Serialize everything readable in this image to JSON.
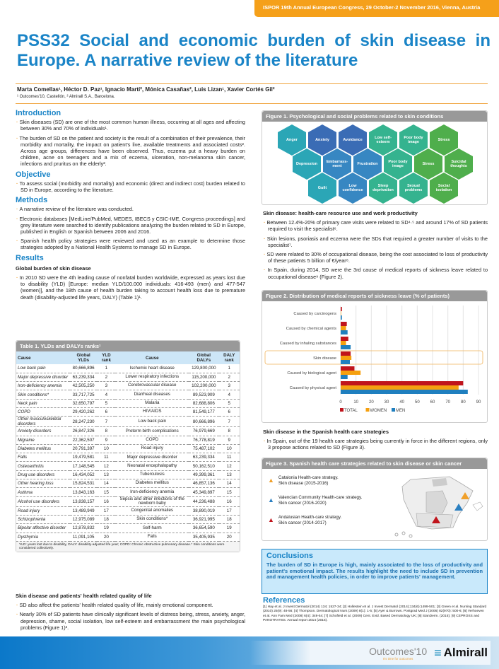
{
  "header": {
    "congress": "ISPOR 19th Annual European Congress, 29 October-2 November 2016, Vienna, Austria",
    "title": "PSS32 Social and economic burden of skin disease in Europe. A narrative review of the literature",
    "authors": "Marta Comellas¹, Héctor D. Paz¹, Ignacio Martí², Mónica Casañas², Luis Lizan¹, Xavier Cortés Gil²",
    "affiliations": "¹ Outcomes'10, Castellón, ² Almirall S.A., Barcelona."
  },
  "introduction": {
    "heading": "Introduction",
    "bullets": [
      "Skin diseases (SD) are one of the most common human illness, occurring at all ages and affecting between 30% and 70% of individuals¹.",
      "The burden of SD on the patient and society is the result of a combination of their prevalence, their morbidity and mortality, the impact on patient's live, available treatments and associated costs². Across age groups, differences have been observed. Thus, eczema put a heavy burden on children, acne on teenagers and a mix of eczema, ulceration, non-melanoma skin cancer, infections and pruritus on the elderly²."
    ]
  },
  "objective": {
    "heading": "Objective",
    "bullets": [
      "To assess social (morbidity and mortality) and economic (direct and indirect cost) burden related to SD in Europe, according to the literature."
    ]
  },
  "methods": {
    "heading": "Methods",
    "bullets": [
      "A narrative review of the literature was conducted.",
      "Electronic databases [MedLine/PubMed, MEDES, IBECS y CSIC-IME, Congress proceedings] and grey literature were searched to identify publications analyzing the burden related to SD in Europe, published in English or Spanish between 2006 and 2016.",
      "Spanish health policy strategies were reviewed and used as an example to determine those strategies adopted by a National Health Systems to manage SD in Europe."
    ]
  },
  "results": {
    "heading": "Results",
    "sub1": "Global burden of skin disease",
    "bullets1": [
      "In 2010 SD were the 4th leading cause of nonfatal burden worldwide, expressed as years lost due to disability (YLD) [Europe: median YLD/100.000 individuals: 416-493 (men) and 477-547 (women)], and the 18th cause of health burden taking to account health loss due to premature death (disability-adjusted life years, DALY) (Table 1)¹."
    ],
    "sub2": "Skin disease and patients' health related quality of life",
    "bullets2": [
      "SD also affect the patients' health related quality of life, mainly emotional component.",
      "Nearly 30% of SD patients have clinically significant levels of distress being, stress, anxiety, anger, depression, shame, social isolation, low self-esteem and embarrassment the main psychological problems (Figure 1)³."
    ],
    "sub3": "Skin disease: health-care resource use and work productivity",
    "bullets3": [
      "Between 12.4%-20% of primary care visits were related to SD⁴·⁵ and around 17% of SD patients required to visit the specialist⁶.",
      "Skin lesions, psoriasis and eczema were the SDs that required a greater number of visits to the specialist⁷.",
      "SD were related to 30% of occupational disease, being the cost associated to loss of productivity of these patients 5 billion of €/year⁸.",
      "In Spain, during 2014, SD were the 3rd cause of medical reports of sickness leave related to occupational disease⁹ (Figure 2)."
    ],
    "sub4": "Skin disease in the Spanish health care strategies",
    "bullets4": [
      "In Spain, out of the 19 health care strategies being currently in force in the different regions, only 3 propose actions related to SD (Figure 3)."
    ]
  },
  "table1": {
    "title": "Table 1. YLDs and DALYs ranks¹",
    "headers": [
      "Cause",
      "Global YLDs",
      "YLD rank",
      "Cause",
      "Global DALYs",
      "DALY rank"
    ],
    "rows": [
      [
        "Low back pain",
        "80,666,896",
        "1",
        "Ischemic heart disease",
        "129,800,000",
        "1"
      ],
      [
        "Major depressive disorder",
        "63,239,334",
        "2",
        "Lower respiratory infections",
        "115,200,000",
        "2"
      ],
      [
        "Iron-deficiency anemia",
        "42,505,250",
        "3",
        "Cerebrovascular disease",
        "102,200,000",
        "3"
      ],
      [
        "Skin conditions*",
        "33,717,725",
        "4",
        "Diarrheal diseases",
        "89,523,909",
        "4"
      ],
      [
        "Neck pain",
        "32,650,797",
        "5",
        "Malaria",
        "82,688,806",
        "5"
      ],
      [
        "COPD",
        "29,420,262",
        "6",
        "HIV/AIDS",
        "81,549,177",
        "6"
      ],
      [
        "Other musculoskeletal disorders",
        "28,247,230",
        "7",
        "Low back pain",
        "80,666,896",
        "7"
      ],
      [
        "Anxiety disorders",
        "26,847,326",
        "8",
        "Preterm birth complications",
        "76,979,669",
        "8"
      ],
      [
        "Migraine",
        "22,362,507",
        "9",
        "COPD",
        "76,778,819",
        "9"
      ],
      [
        "Diabetes mellitus",
        "20,791,397",
        "10",
        "Road injury",
        "75,487,102",
        "10"
      ],
      [
        "Falls",
        "19,479,581",
        "11",
        "Major depressive disorder",
        "63,239,334",
        "11"
      ],
      [
        "Osteoarthritis",
        "17,148,545",
        "12",
        "Neonatal encephalopathy",
        "50,162,510",
        "12"
      ],
      [
        "Drug use disorders",
        "16,434,052",
        "13",
        "Tuberculosis",
        "49,399,361",
        "13"
      ],
      [
        "Other hearing loss",
        "15,824,531",
        "14",
        "Diabetes mellitus",
        "46,857,136",
        "14"
      ],
      [
        "Asthma",
        "13,843,163",
        "15",
        "Iron-deficiency anemia",
        "45,349,897",
        "15"
      ],
      [
        "Alcohol use disorders",
        "13,838,157",
        "16",
        "Sepsis and other infections of the newborn baby",
        "44,236,488",
        "16"
      ],
      [
        "Road injury",
        "13,489,949",
        "17",
        "Congenital anomalies",
        "38,890,019",
        "17"
      ],
      [
        "Schizophrenia",
        "12,975,089",
        "18",
        "Skin conditions*",
        "36,921,995",
        "18"
      ],
      [
        "Bipolar affective disorder",
        "12,878,832",
        "19",
        "Self-harm",
        "36,654,590",
        "19"
      ],
      [
        "Dysthymia",
        "11,091,105",
        "20",
        "Falls",
        "35,405,935",
        "20"
      ]
    ],
    "footnote": "YLD: years lost due to disability, DALY: disability-adjusted life year; COPD: Chronic obstructive pulmonary disease.* Skin conditions were considered collectively."
  },
  "figure1": {
    "title": "Figure 1. Psychological and social problems related to skin conditions",
    "hexes": [
      {
        "label": "Anger",
        "color": "#2ba6b6"
      },
      {
        "label": "Anxiety",
        "color": "#3a6cb5"
      },
      {
        "label": "Avoidance",
        "color": "#3a6cb5"
      },
      {
        "label": "Low self-esteem",
        "color": "#35b38f"
      },
      {
        "label": "Poor body image",
        "color": "#35b38f"
      },
      {
        "label": "Stress",
        "color": "#4fae4c"
      },
      {
        "label": "Depression",
        "color": "#2ba6b6"
      },
      {
        "label": "Embarrass-ment",
        "color": "#3787c2"
      },
      {
        "label": "Frustration",
        "color": "#3787c2"
      },
      {
        "label": "Poor body image",
        "color": "#35b38f"
      },
      {
        "label": "Stress",
        "color": "#4fae4c"
      },
      {
        "label": "Suicidal thoughts",
        "color": "#4fae4c"
      },
      {
        "label": "Guilt",
        "color": "#2ba6b6"
      },
      {
        "label": "Low confidence",
        "color": "#3787c2"
      },
      {
        "label": "Sleep deprivation",
        "color": "#35b38f"
      },
      {
        "label": "Sexual problems",
        "color": "#35b38f"
      },
      {
        "label": "Social isolation",
        "color": "#4fae4c"
      }
    ]
  },
  "chart_data": {
    "type": "bar",
    "orientation": "horizontal",
    "title": "Figure 2. Distribution of medical reports of sickness leave (% of patients)",
    "categories": [
      "Caused by carcinogens",
      "Caused by chemical agents",
      "Caused by inhaling substances",
      "Skin disease",
      "Caused by biological agent",
      "Caused by physical agent"
    ],
    "highlight": "Skin disease",
    "xlim": [
      0,
      90
    ],
    "xticks": [
      "0",
      "10",
      "20",
      "30",
      "40",
      "50",
      "60",
      "70",
      "80",
      "90"
    ],
    "legend": "bottom",
    "grid": true,
    "series": [
      {
        "name": "TOTAL",
        "color": "#c0141c",
        "values": [
          0.8,
          4,
          5,
          6.5,
          9,
          80
        ]
      },
      {
        "name": "WOMEN",
        "color": "#f5a00f",
        "values": [
          0.3,
          3.5,
          3.5,
          7,
          13,
          77
        ]
      },
      {
        "name": "MEN",
        "color": "#1f7fbf",
        "values": [
          0.8,
          4.5,
          6.5,
          6,
          4.5,
          83
        ]
      }
    ]
  },
  "figure3": {
    "title": "Figure 3. Spanish health care strategies related to skin disease or skin cancer",
    "items": [
      {
        "line1": "Catalonia Health-care strategy.",
        "line2": "Skin disease (2015-2016)",
        "color": "#f0a02a"
      },
      {
        "line1": "Valencian Community Health-care strategy.",
        "line2": "Skin cancer (2016-2020)",
        "color": "#2a7fc0"
      },
      {
        "line1": "Andalusian Health-care strategy.",
        "line2": "Skin cancer (2014-2017)",
        "color": "#c0141c"
      }
    ]
  },
  "conclusions": {
    "heading": "Conclusions",
    "text": "The burden of SD in Europe is high, mainly associated to the loss of productivity and patient's emotional impact. The results highlight the need to include SD in prevention and management health policies, in order to improve patients' management."
  },
  "references": {
    "heading": "References",
    "text": "[1] Hay et al. J Invest Dermatol (2014) 134; 1527-34; [2] Hollestein et al. J Invest Dermatol (2014);134(6):1499-501; [3] Green et al. Nursing Standard (2010) 25(9): 48-56; [4] Thompson. Dermatological Nurs (2009) 8(1): 1-5; [5] Ayer & Burrows. Postgrad Med J (2006) 82(970): 500-6; [6] Verhoeven et al. Ann Fam Med (2008) 6(4): 349-54; [7] Schofield et al. (2009) Cent. Evid. Based Dermatology UK; [8] StanDerm. (2015); [9] CEPROSS and PANOTRATSS. Annual report 2014 (2015)."
  },
  "footer": {
    "logo1": "Outcomes'10",
    "logo1_tag": "It's time for outcomes",
    "logo2": "Almirall"
  }
}
